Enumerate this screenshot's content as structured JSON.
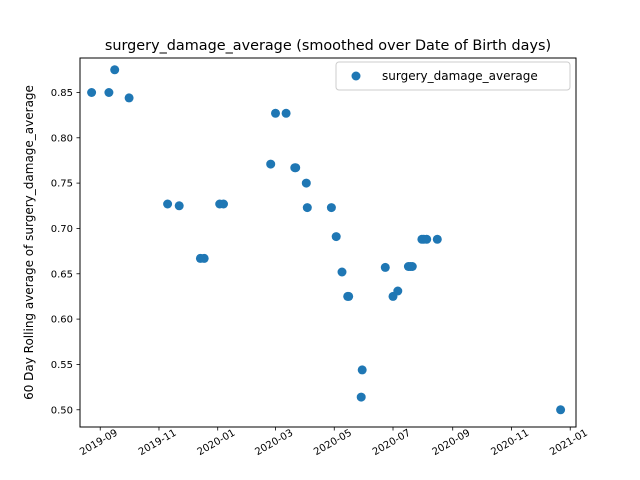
{
  "chart_data": {
    "type": "scatter",
    "title": "surgery_damage_average (smoothed over Date of Birth days)",
    "xlabel": "",
    "ylabel": "60 Day Rolling average of surgery_damage_average",
    "x_tick_labels": [
      "2019-09",
      "2019-11",
      "2020-01",
      "2020-03",
      "2020-05",
      "2020-07",
      "2020-09",
      "2020-11",
      "2021-01"
    ],
    "x_tick_dates": [
      "2019-09-01",
      "2019-11-01",
      "2020-01-01",
      "2020-03-01",
      "2020-05-01",
      "2020-07-01",
      "2020-09-01",
      "2020-11-01",
      "2021-01-01"
    ],
    "y_ticks": [
      0.5,
      0.55,
      0.6,
      0.65,
      0.7,
      0.75,
      0.8,
      0.85
    ],
    "y_tick_labels": [
      "0.50",
      "0.55",
      "0.60",
      "0.65",
      "0.70",
      "0.75",
      "0.80",
      "0.85"
    ],
    "xlim": [
      "2019-08-11",
      "2021-01-07"
    ],
    "ylim": [
      0.481,
      0.888
    ],
    "grid": false,
    "legend": "top-right",
    "color": "#1f77b4",
    "series": [
      {
        "name": "surgery_damage_average",
        "x": [
          "2019-08-23",
          "2019-09-10",
          "2019-09-16",
          "2019-10-01",
          "2019-11-10",
          "2019-11-22",
          "2019-12-14",
          "2019-12-18",
          "2020-01-03",
          "2020-01-07",
          "2020-02-25",
          "2020-03-01",
          "2020-03-12",
          "2020-03-21",
          "2020-03-22",
          "2020-04-02",
          "2020-04-03",
          "2020-04-28",
          "2020-05-03",
          "2020-05-09",
          "2020-05-15",
          "2020-05-16",
          "2020-05-29",
          "2020-05-30",
          "2020-06-23",
          "2020-07-01",
          "2020-07-06",
          "2020-07-17",
          "2020-07-19",
          "2020-07-21",
          "2020-07-31",
          "2020-08-02",
          "2020-08-05",
          "2020-08-16",
          "2020-12-22"
        ],
        "y": [
          0.85,
          0.85,
          0.875,
          0.844,
          0.727,
          0.725,
          0.667,
          0.667,
          0.727,
          0.727,
          0.771,
          0.827,
          0.827,
          0.767,
          0.767,
          0.75,
          0.723,
          0.723,
          0.691,
          0.652,
          0.625,
          0.625,
          0.514,
          0.544,
          0.657,
          0.625,
          0.631,
          0.658,
          0.658,
          0.658,
          0.688,
          0.688,
          0.688,
          0.688,
          0.5
        ]
      }
    ]
  }
}
